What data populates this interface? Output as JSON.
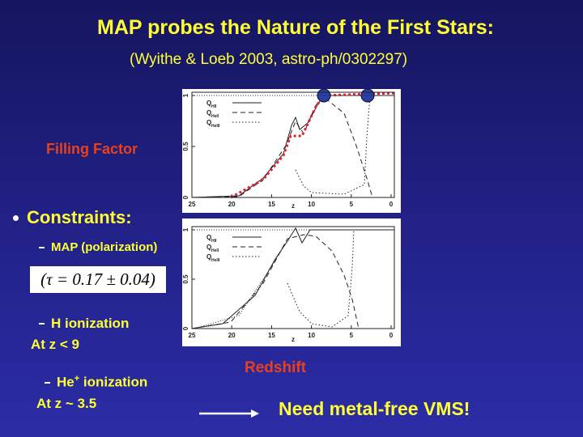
{
  "title": "MAP probes the Nature of the First Stars:",
  "subtitle": "(Wyithe & Loeb 2003, astro-ph/0302297)",
  "filling_factor": "Filling Factor",
  "redshift": "Redshift",
  "constraints": {
    "heading": "Constraints:",
    "map": "MAP (polarization)",
    "formula": "(τ = 0.17 ± 0.04)",
    "h_ionization": "H ionization",
    "h_detail": "At z < 9",
    "he_label": "He",
    "he_sup": "+",
    "he_tail": " ionization",
    "he_detail": "At z ~ 3.5"
  },
  "conclusion": "Need metal-free VMS!",
  "plots": [
    {
      "yticks": [
        "1",
        "0.5",
        "0"
      ],
      "xticks": [
        "25",
        "20",
        "15",
        "10",
        "5",
        "0"
      ],
      "xlabel": "z",
      "legend": [
        {
          "symbol": "Q",
          "sub": "HII"
        },
        {
          "symbol": "Q",
          "sub": "HeII"
        },
        {
          "symbol": "Q",
          "sub": "HeIII"
        }
      ]
    },
    {
      "yticks": [
        "1",
        "0.5",
        "0"
      ],
      "xticks": [
        "25",
        "20",
        "15",
        "10",
        "5",
        "0"
      ],
      "xlabel": "z",
      "legend": [
        {
          "symbol": "Q",
          "sub": "HII"
        },
        {
          "symbol": "Q",
          "sub": "HeII"
        },
        {
          "symbol": "Q",
          "sub": "HeIII"
        }
      ]
    }
  ]
}
